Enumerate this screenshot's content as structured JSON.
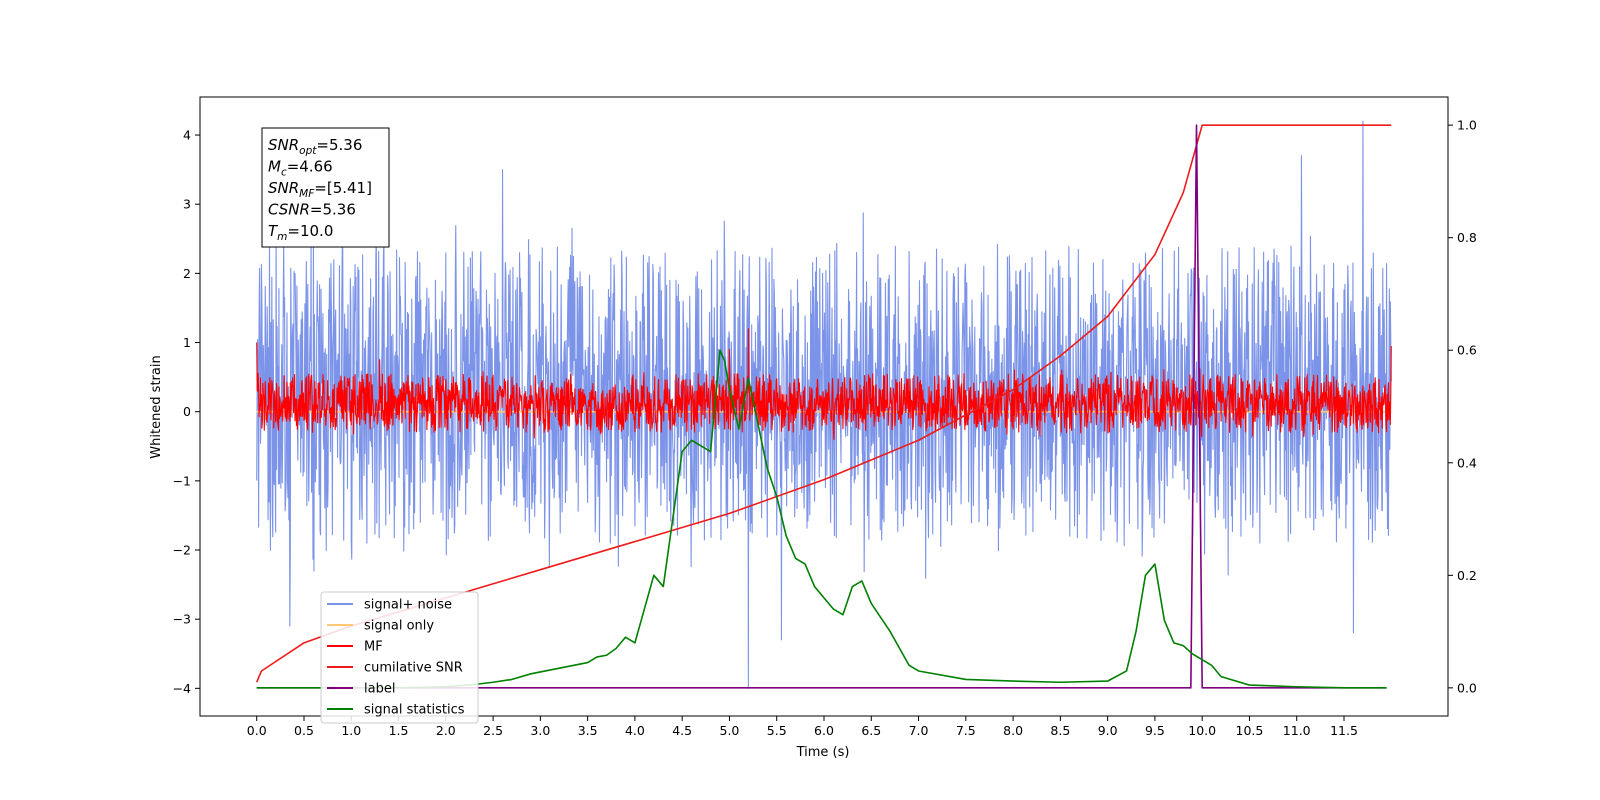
{
  "chart_data": {
    "type": "line",
    "xlabel": "Time (s)",
    "ylabel": "Whitened strain",
    "xlim": [
      -0.6,
      12.6
    ],
    "ylim": [
      -4.4,
      4.55
    ],
    "y2lim": [
      -0.05,
      1.05
    ],
    "xticks": [
      0.0,
      0.5,
      1.0,
      1.5,
      2.0,
      2.5,
      3.0,
      3.5,
      4.0,
      4.5,
      5.0,
      5.5,
      6.0,
      6.5,
      7.0,
      7.5,
      8.0,
      8.5,
      9.0,
      9.5,
      10.0,
      10.5,
      11.0,
      11.5
    ],
    "xtick_labels": [
      "0.0",
      "0.5",
      "1.0",
      "1.5",
      "2.0",
      "2.5",
      "3.0",
      "3.5",
      "4.0",
      "4.5",
      "5.0",
      "5.5",
      "6.0",
      "6.5",
      "7.0",
      "7.5",
      "8.0",
      "8.5",
      "9.0",
      "9.5",
      "10.0",
      "10.5",
      "11.0",
      "11.5"
    ],
    "yticks": [
      -4,
      -3,
      -2,
      -1,
      0,
      1,
      2,
      3,
      4
    ],
    "ytick_labels": [
      "−4",
      "−3",
      "−2",
      "−1",
      "0",
      "1",
      "2",
      "3",
      "4"
    ],
    "y2ticks": [
      0.0,
      0.2,
      0.4,
      0.6,
      0.8,
      1.0
    ],
    "y2tick_labels": [
      "0.0",
      "0.2",
      "0.4",
      "0.6",
      "0.8",
      "1.0"
    ],
    "annotation": [
      {
        "base": "SNR",
        "sub": "opt",
        "value": "=5.36"
      },
      {
        "base": "M",
        "sub": "c",
        "value": "=4.66"
      },
      {
        "base": "SNR",
        "sub": "MF",
        "value": "=[5.41]"
      },
      {
        "base": "CSNR",
        "sub": "",
        "value": "=5.36"
      },
      {
        "base": "T",
        "sub": "m",
        "value": "=10.0"
      }
    ],
    "legend": {
      "placement": "lower-left",
      "entries": [
        {
          "label": "signal+ noise",
          "color": "#7b93e8"
        },
        {
          "label": "signal only",
          "color": "#ffc875"
        },
        {
          "label": "MF",
          "color": "#ff0000"
        },
        {
          "label": "cumilative SNR",
          "color": "#ee1b1b"
        },
        {
          "label": "label",
          "color": "#800080"
        },
        {
          "label": "signal statistics",
          "color": "#008000"
        }
      ]
    },
    "series": [
      {
        "name": "signal+ noise",
        "axis": "left",
        "color": "#7b93e8",
        "kind": "noise",
        "t_range": [
          0.0,
          12.0
        ],
        "band": [
          -1.9,
          2.4
        ],
        "spikes": [
          [
            0.35,
            -3.1
          ],
          [
            0.6,
            2.6
          ],
          [
            2.6,
            3.5
          ],
          [
            5.2,
            -4.0
          ],
          [
            5.55,
            -3.3
          ],
          [
            11.05,
            3.7
          ],
          [
            11.7,
            4.2
          ],
          [
            11.6,
            -3.2
          ]
        ]
      },
      {
        "name": "signal only",
        "axis": "left",
        "color": "#ffc875",
        "kind": "flat",
        "x": [
          0.0,
          12.0
        ],
        "y": [
          0.0,
          0.0
        ]
      },
      {
        "name": "MF",
        "axis": "left",
        "color": "#ff0000",
        "kind": "noise",
        "t_range": [
          0.0,
          12.0
        ],
        "band": [
          -0.3,
          0.55
        ],
        "spikes": [
          [
            0.0,
            1.0
          ],
          [
            1.3,
            0.75
          ],
          [
            5.0,
            0.9
          ],
          [
            5.2,
            1.2
          ],
          [
            12.0,
            0.95
          ]
        ]
      },
      {
        "name": "cumilative SNR",
        "axis": "right",
        "color": "#ee1b1b",
        "x": [
          0.0,
          0.05,
          0.5,
          1.0,
          2.0,
          3.0,
          4.0,
          5.0,
          6.0,
          7.0,
          8.0,
          8.5,
          9.0,
          9.5,
          9.8,
          10.0,
          12.0
        ],
        "y": [
          0.01,
          0.03,
          0.08,
          0.11,
          0.16,
          0.21,
          0.26,
          0.31,
          0.37,
          0.44,
          0.53,
          0.59,
          0.66,
          0.77,
          0.88,
          1.0,
          1.0
        ]
      },
      {
        "name": "label",
        "axis": "right",
        "color": "#800080",
        "x": [
          0.0,
          9.88,
          9.94,
          10.0,
          11.95
        ],
        "y": [
          0.0,
          0.0,
          1.0,
          0.0,
          0.0
        ]
      },
      {
        "name": "signal statistics",
        "axis": "right",
        "color": "#008000",
        "x": [
          0.0,
          0.5,
          1.0,
          1.5,
          2.0,
          2.3,
          2.5,
          2.7,
          2.9,
          3.2,
          3.5,
          3.6,
          3.7,
          3.8,
          3.9,
          4.0,
          4.1,
          4.2,
          4.3,
          4.4,
          4.5,
          4.6,
          4.7,
          4.8,
          4.9,
          4.95,
          5.0,
          5.1,
          5.2,
          5.3,
          5.4,
          5.5,
          5.6,
          5.7,
          5.8,
          5.9,
          6.0,
          6.1,
          6.2,
          6.3,
          6.4,
          6.5,
          6.7,
          6.9,
          7.0,
          7.5,
          8.0,
          8.5,
          9.0,
          9.2,
          9.3,
          9.4,
          9.5,
          9.6,
          9.7,
          9.8,
          9.9,
          10.0,
          10.1,
          10.2,
          10.5,
          11.0,
          11.5,
          11.95
        ],
        "y": [
          0.0,
          0.0,
          0.0,
          0.0,
          0.002,
          0.006,
          0.01,
          0.015,
          0.025,
          0.035,
          0.045,
          0.055,
          0.058,
          0.07,
          0.09,
          0.08,
          0.14,
          0.2,
          0.18,
          0.3,
          0.42,
          0.44,
          0.43,
          0.42,
          0.6,
          0.58,
          0.53,
          0.46,
          0.55,
          0.47,
          0.39,
          0.34,
          0.27,
          0.23,
          0.22,
          0.18,
          0.16,
          0.14,
          0.13,
          0.18,
          0.19,
          0.15,
          0.1,
          0.04,
          0.03,
          0.015,
          0.012,
          0.01,
          0.012,
          0.03,
          0.1,
          0.2,
          0.22,
          0.12,
          0.08,
          0.075,
          0.06,
          0.05,
          0.04,
          0.02,
          0.005,
          0.002,
          0.0,
          0.0
        ]
      }
    ]
  }
}
